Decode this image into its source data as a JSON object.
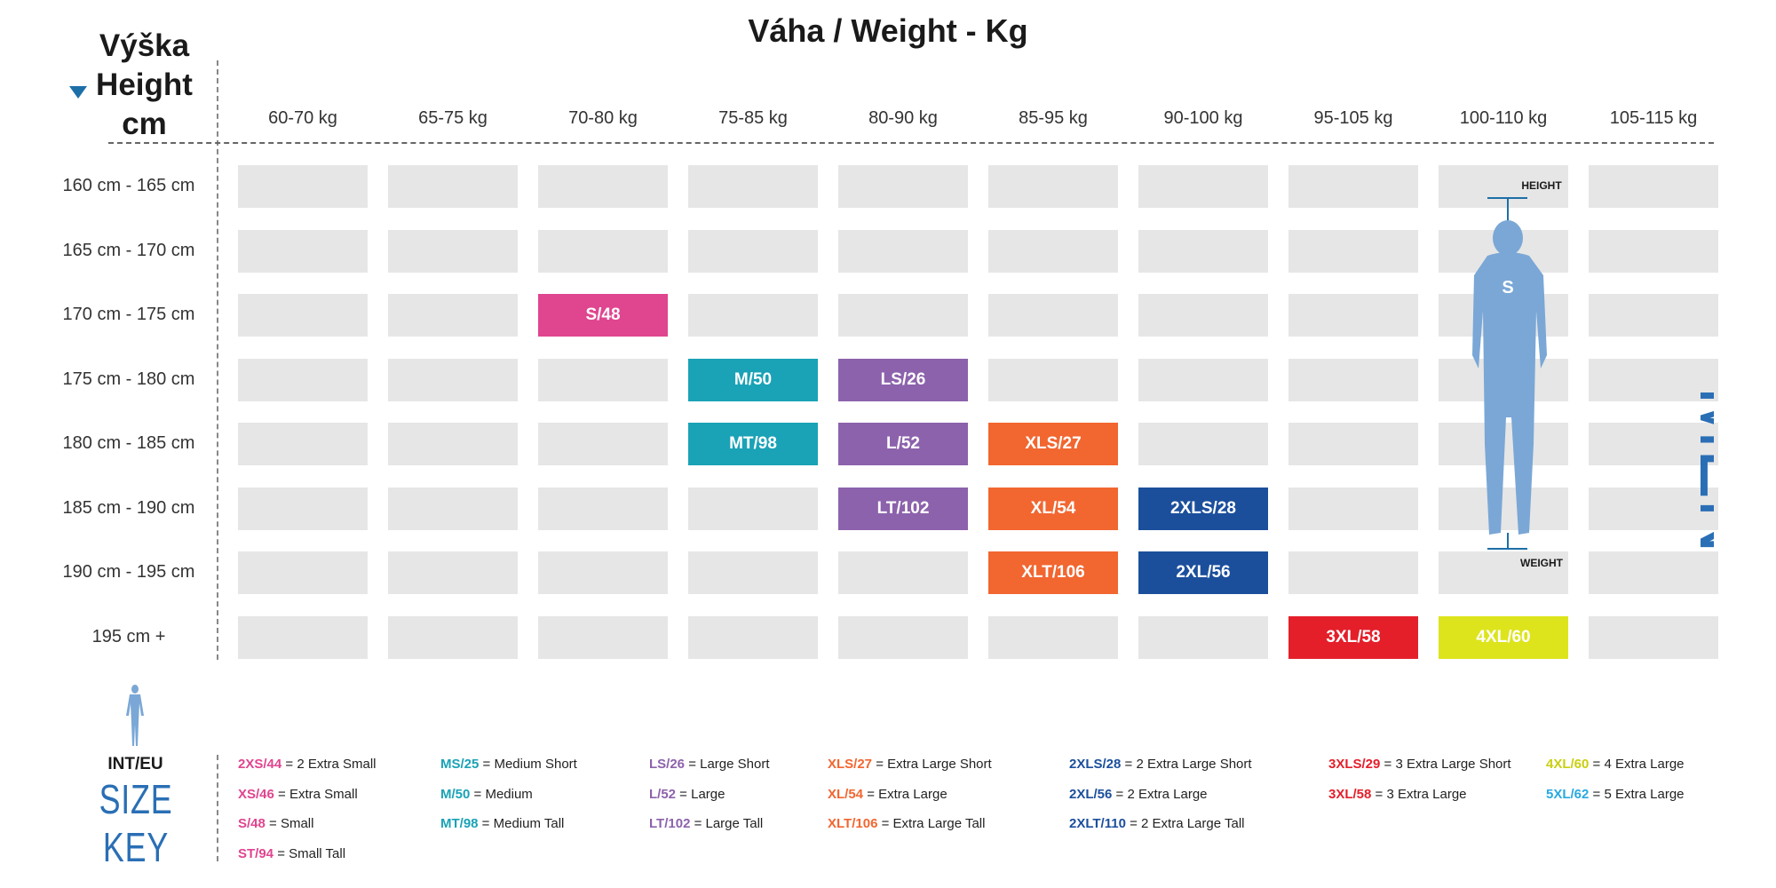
{
  "title": "Váha / Weight - Kg",
  "height_header": {
    "l1": "Výška",
    "l2": "Height",
    "l3": "cm"
  },
  "columns": [
    "60-70 kg",
    "65-75 kg",
    "70-80 kg",
    "75-85 kg",
    "80-90 kg",
    "85-95 kg",
    "90-100 kg",
    "95-105 kg",
    "100-110 kg",
    "105-115 kg"
  ],
  "rows": [
    "160 cm - 165 cm",
    "165 cm - 170 cm",
    "170 cm - 175 cm",
    "175 cm - 180 cm",
    "180 cm - 185 cm",
    "185 cm - 190 cm",
    "190 cm - 195 cm",
    "195 cm +"
  ],
  "sizes": [
    {
      "label": "S/48",
      "row": 2,
      "col": 2,
      "color": "#e0458f"
    },
    {
      "label": "M/50",
      "row": 3,
      "col": 3,
      "color": "#1aa2b6"
    },
    {
      "label": "LS/26",
      "row": 3,
      "col": 4,
      "color": "#8c62ac"
    },
    {
      "label": "MT/98",
      "row": 4,
      "col": 3,
      "color": "#1aa2b6"
    },
    {
      "label": "L/52",
      "row": 4,
      "col": 4,
      "color": "#8c62ac"
    },
    {
      "label": "XLS/27",
      "row": 4,
      "col": 5,
      "color": "#f26630"
    },
    {
      "label": "LT/102",
      "row": 5,
      "col": 4,
      "color": "#8c62ac"
    },
    {
      "label": "XL/54",
      "row": 5,
      "col": 5,
      "color": "#f26630"
    },
    {
      "label": "2XLS/28",
      "row": 5,
      "col": 6,
      "color": "#1b4f9c"
    },
    {
      "label": "XLT/106",
      "row": 6,
      "col": 5,
      "color": "#f26630"
    },
    {
      "label": "2XL/56",
      "row": 6,
      "col": 6,
      "color": "#1b4f9c"
    },
    {
      "label": "3XL/58",
      "row": 7,
      "col": 7,
      "color": "#e41f2a"
    },
    {
      "label": "4XL/60",
      "row": 7,
      "col": 8,
      "color": "#dde41c"
    }
  ],
  "figure": {
    "height_label": "HEIGHT",
    "weight_label": "WEIGHT",
    "men_label": "MEN",
    "body_color": "#7aa7d6"
  },
  "legend_title": {
    "l1": "INT/EU",
    "l2": "SIZE KEY"
  },
  "legend": [
    {
      "code": "2XS/44",
      "desc": "= 2 Extra Small",
      "color": "#e0458f",
      "col": 0,
      "row": 0
    },
    {
      "code": "XS/46",
      "desc": "= Extra Small",
      "color": "#e0458f",
      "col": 0,
      "row": 1
    },
    {
      "code": "S/48",
      "desc": "= Small",
      "color": "#e0458f",
      "col": 0,
      "row": 2
    },
    {
      "code": "ST/94",
      "desc": "= Small Tall",
      "color": "#e0458f",
      "col": 0,
      "row": 3
    },
    {
      "code": "MS/25",
      "desc": "= Medium Short",
      "color": "#1aa2b6",
      "col": 1,
      "row": 0
    },
    {
      "code": "M/50",
      "desc": "= Medium",
      "color": "#1aa2b6",
      "col": 1,
      "row": 1
    },
    {
      "code": "MT/98",
      "desc": "= Medium Tall",
      "color": "#1aa2b6",
      "col": 1,
      "row": 2
    },
    {
      "code": "LS/26",
      "desc": "= Large Short",
      "color": "#8c62ac",
      "col": 2,
      "row": 0
    },
    {
      "code": "L/52",
      "desc": "= Large",
      "color": "#8c62ac",
      "col": 2,
      "row": 1
    },
    {
      "code": "LT/102",
      "desc": "= Large Tall",
      "color": "#8c62ac",
      "col": 2,
      "row": 2
    },
    {
      "code": "XLS/27",
      "desc": "= Extra Large Short",
      "color": "#f26630",
      "col": 3,
      "row": 0
    },
    {
      "code": "XL/54",
      "desc": "= Extra Large",
      "color": "#f26630",
      "col": 3,
      "row": 1
    },
    {
      "code": "XLT/106",
      "desc": "= Extra Large Tall",
      "color": "#f26630",
      "col": 3,
      "row": 2
    },
    {
      "code": "2XLS/28",
      "desc": "= 2 Extra Large Short",
      "color": "#1b4f9c",
      "col": 4,
      "row": 0
    },
    {
      "code": "2XL/56",
      "desc": "= 2 Extra Large",
      "color": "#1b4f9c",
      "col": 4,
      "row": 1
    },
    {
      "code": "2XLT/110",
      "desc": "= 2 Extra Large Tall",
      "color": "#1b4f9c",
      "col": 4,
      "row": 2
    },
    {
      "code": "3XLS/29",
      "desc": "= 3 Extra Large Short",
      "color": "#e41f2a",
      "col": 5,
      "row": 0
    },
    {
      "code": "3XL/58",
      "desc": "= 3 Extra Large",
      "color": "#e41f2a",
      "col": 5,
      "row": 1
    },
    {
      "code": "4XL/60",
      "desc": "= 4 Extra Large",
      "color": "#c9cf10",
      "col": 6,
      "row": 0
    },
    {
      "code": "5XL/62",
      "desc": "= 5 Extra Large",
      "color": "#29a9e1",
      "col": 6,
      "row": 1
    }
  ]
}
